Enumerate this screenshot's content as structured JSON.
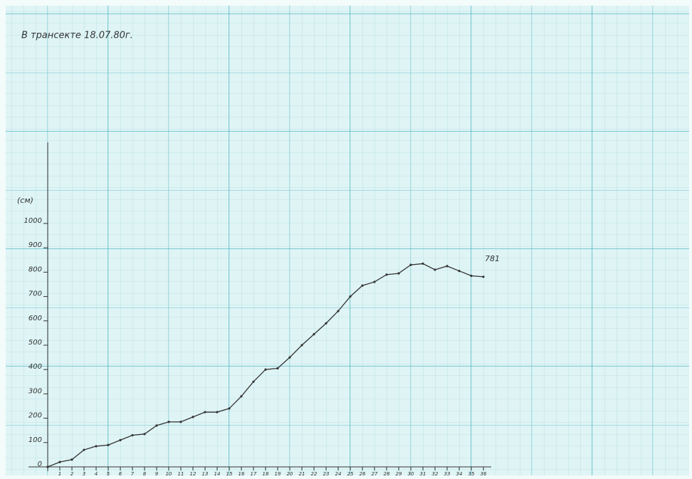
{
  "chart_data": {
    "type": "line",
    "title": "В трансекте 18.07.80г.",
    "y_label": "(см)",
    "annotation": "781",
    "x": [
      0,
      1,
      2,
      3,
      4,
      5,
      6,
      7,
      8,
      9,
      10,
      11,
      12,
      13,
      14,
      15,
      16,
      17,
      18,
      19,
      20,
      21,
      22,
      23,
      24,
      25,
      26,
      27,
      28,
      29,
      30,
      31,
      32,
      33,
      34,
      35,
      36
    ],
    "series": [
      {
        "color": "#333333",
        "values": [
          0,
          20,
          30,
          70,
          85,
          90,
          110,
          130,
          135,
          170,
          185,
          185,
          205,
          225,
          225,
          240,
          290,
          350,
          400,
          405,
          450,
          500,
          545,
          590,
          640,
          700,
          745,
          760,
          790,
          795,
          830,
          835,
          810,
          825,
          805,
          785,
          781
        ]
      }
    ],
    "xlim": [
      0,
      36
    ],
    "xticks": [
      1,
      2,
      3,
      4,
      5,
      6,
      7,
      8,
      9,
      10,
      11,
      12,
      13,
      14,
      15,
      16,
      17,
      18,
      19,
      20,
      21,
      22,
      23,
      24,
      25,
      26,
      27,
      28,
      29,
      30,
      31,
      32,
      33,
      34,
      35,
      36
    ],
    "ylim": [
      0,
      1000
    ],
    "yticks": [
      0,
      100,
      200,
      300,
      400,
      500,
      600,
      700,
      800,
      900,
      1000
    ]
  }
}
